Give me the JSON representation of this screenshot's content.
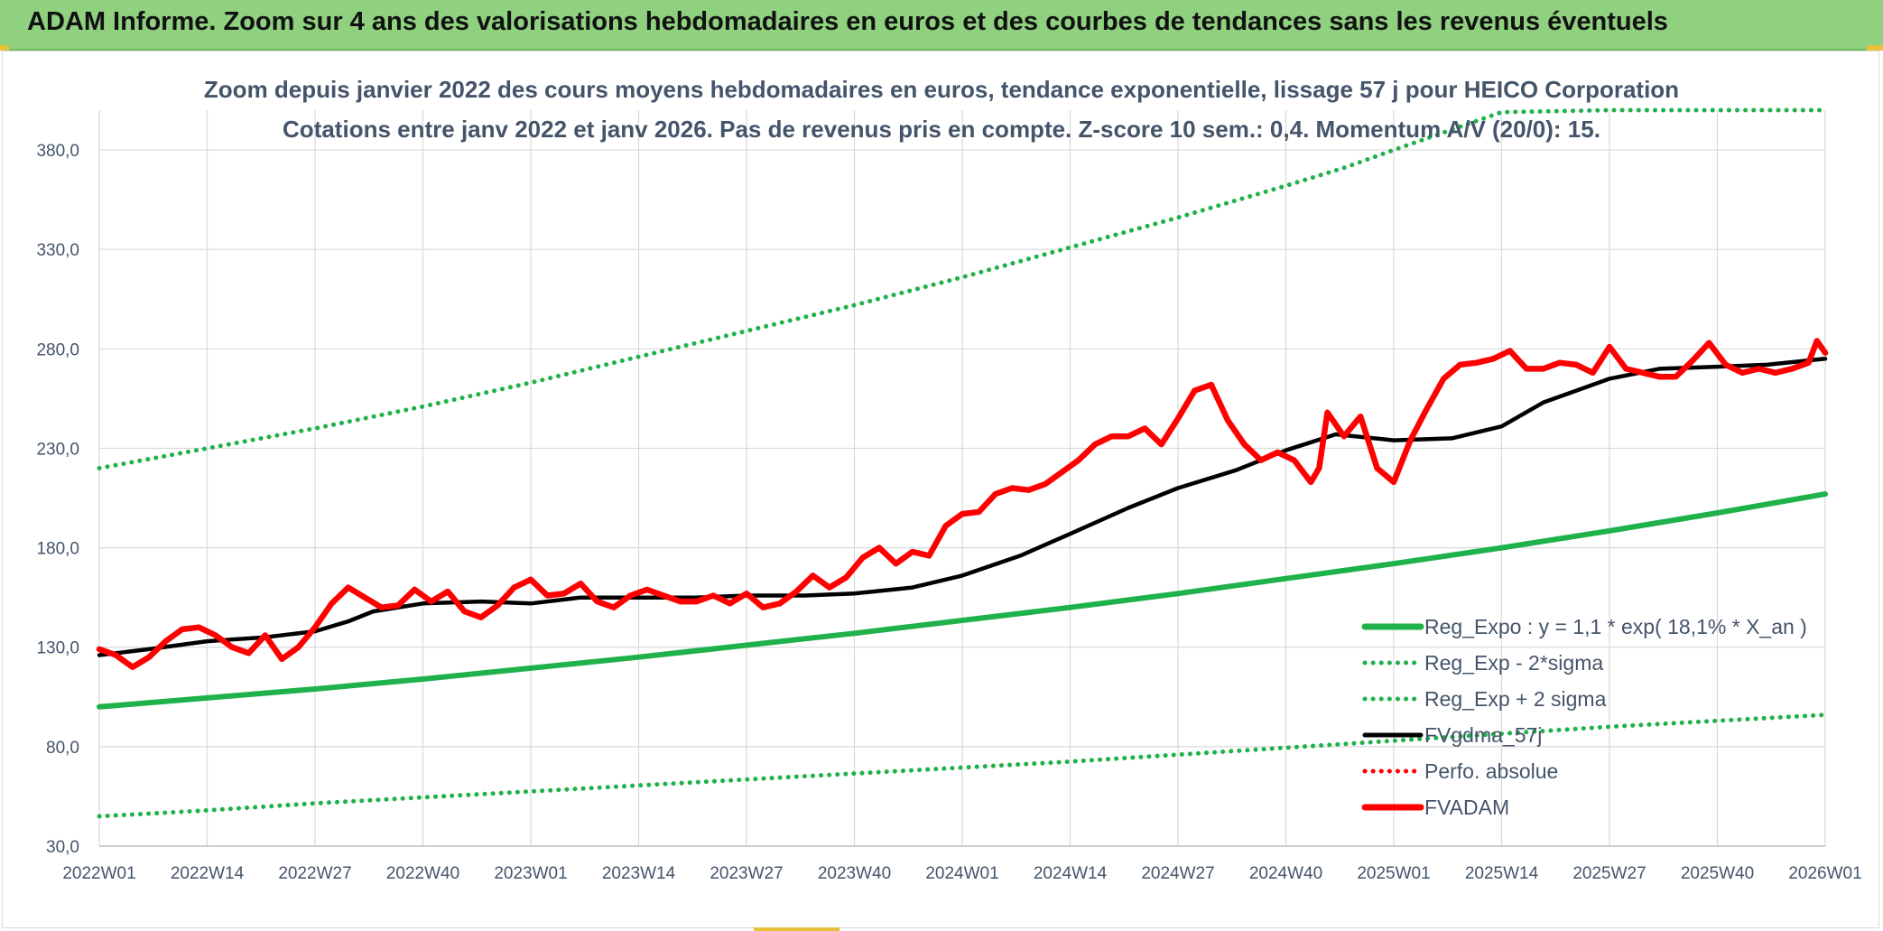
{
  "header": {
    "title": "ADAM Informe. Zoom sur 4 ans des valorisations hebdomadaires en euros et des courbes de tendances sans les revenus éventuels"
  },
  "colors": {
    "header_bg": "#8fd17f",
    "reg_expo": "#1fb14a",
    "sigma_bands": "#1fb14a",
    "fvgdma": "#000000",
    "perfo": "#ff0000",
    "fvadam": "#ff0000",
    "grid": "#d9d9d9",
    "text": "#44546a"
  },
  "chart_data": {
    "type": "line",
    "title_line1": "Zoom depuis janvier 2022 des cours moyens hebdomadaires en euros, tendance exponentielle, lissage 57 j pour HEICO Corporation",
    "title_line2": "Cotations entre janv 2022 et janv 2026. Pas de revenus pris en compte. Z-score 10 sem.: 0,4. Momentum A/V (20/0): 15.",
    "xlabel": "",
    "ylabel": "",
    "ylim": [
      30,
      400
    ],
    "xlim": [
      0,
      208
    ],
    "y_ticks": [
      30,
      80,
      130,
      180,
      230,
      280,
      330,
      380
    ],
    "y_tick_labels": [
      "30,0",
      "80,0",
      "130,0",
      "180,0",
      "230,0",
      "280,0",
      "330,0",
      "380,0"
    ],
    "x_ticks": [
      0,
      13,
      26,
      39,
      52,
      65,
      78,
      91,
      104,
      117,
      130,
      143,
      156,
      169,
      182,
      195,
      208
    ],
    "x_tick_labels": [
      "2022W01",
      "2022W14",
      "2022W27",
      "2022W40",
      "2023W01",
      "2023W14",
      "2023W27",
      "2023W40",
      "2024W01",
      "2024W14",
      "2024W27",
      "2024W40",
      "2025W01",
      "2025W14",
      "2025W27",
      "2025W40",
      "2026W01"
    ],
    "grid": true,
    "legend_position": "bottom-right",
    "legend": [
      {
        "key": "reg_expo",
        "label": "Reg_Expo : y = 1,1 * exp( 18,1% *  X_an )",
        "style": "solid-thick",
        "color": "#1fb14a"
      },
      {
        "key": "reg_minus",
        "label": "Reg_Exp - 2*sigma",
        "style": "dotted",
        "color": "#1fb14a"
      },
      {
        "key": "reg_plus",
        "label": "Reg_Exp + 2 sigma",
        "style": "dotted",
        "color": "#1fb14a"
      },
      {
        "key": "fvgdma",
        "label": "FVgdma_57j",
        "style": "solid",
        "color": "#000000"
      },
      {
        "key": "perfo",
        "label": "Perfo. absolue",
        "style": "dotted",
        "color": "#ff0000"
      },
      {
        "key": "fvadam",
        "label": "FVADAM",
        "style": "solid-thick",
        "color": "#ff0000"
      }
    ],
    "series": [
      {
        "name": "Reg_Expo",
        "color": "#1fb14a",
        "x": [
          0,
          13,
          26,
          39,
          52,
          65,
          78,
          91,
          104,
          117,
          130,
          143,
          156,
          169,
          182,
          195,
          208
        ],
        "values": [
          100,
          104.5,
          109,
          114,
          119.5,
          125,
          131,
          137,
          143.5,
          150,
          157,
          164.5,
          172,
          180,
          188.5,
          197.5,
          207
        ]
      },
      {
        "name": "Reg_Exp - 2*sigma",
        "color": "#1fb14a",
        "x": [
          0,
          13,
          26,
          39,
          52,
          65,
          78,
          91,
          104,
          117,
          130,
          143,
          156,
          169,
          182,
          195,
          208
        ],
        "values": [
          45,
          48,
          51.5,
          54.5,
          57.5,
          60.5,
          63.5,
          66.5,
          69.5,
          72.5,
          76,
          79.5,
          83,
          86.5,
          90,
          93,
          96
        ]
      },
      {
        "name": "Reg_Exp + 2 sigma",
        "color": "#1fb14a",
        "x": [
          0,
          13,
          26,
          39,
          52,
          65,
          78,
          91,
          104,
          117,
          130,
          143,
          150,
          156,
          169,
          182,
          195,
          208
        ],
        "values": [
          220,
          230,
          240,
          251,
          263,
          276,
          289,
          302,
          316,
          331,
          346,
          362,
          371,
          380,
          399,
          400,
          400,
          400
        ]
      },
      {
        "name": "FVgdma_57j",
        "color": "#000000",
        "x": [
          0,
          6,
          13,
          20,
          26,
          30,
          33,
          39,
          46,
          52,
          58,
          65,
          72,
          78,
          85,
          91,
          98,
          104,
          111,
          117,
          124,
          130,
          137,
          143,
          149,
          156,
          163,
          169,
          174,
          182,
          188,
          195,
          201,
          208
        ],
        "values": [
          126,
          129,
          133,
          135,
          138,
          143,
          148,
          152,
          153,
          152,
          155,
          155,
          155,
          156,
          156,
          157,
          160,
          166,
          176,
          187,
          200,
          210,
          219,
          229,
          237,
          234,
          235,
          241,
          253,
          265,
          270,
          271,
          272,
          275
        ]
      },
      {
        "name": "FVADAM",
        "color": "#ff0000",
        "x": [
          0,
          2,
          4,
          6,
          8,
          10,
          12,
          14,
          16,
          18,
          20,
          22,
          24,
          26,
          28,
          30,
          32,
          34,
          36,
          38,
          40,
          42,
          44,
          46,
          48,
          50,
          52,
          54,
          56,
          58,
          60,
          62,
          64,
          66,
          68,
          70,
          72,
          74,
          76,
          78,
          80,
          82,
          84,
          86,
          88,
          90,
          92,
          94,
          96,
          98,
          100,
          102,
          104,
          106,
          108,
          110,
          112,
          114,
          116,
          118,
          120,
          122,
          124,
          126,
          128,
          130,
          132,
          134,
          136,
          138,
          140,
          142,
          144,
          146,
          147,
          148,
          150,
          152,
          154,
          156,
          158,
          160,
          162,
          164,
          166,
          168,
          170,
          172,
          174,
          176,
          178,
          180,
          182,
          184,
          186,
          188,
          190,
          192,
          194,
          196,
          198,
          200,
          202,
          204,
          206,
          207,
          208
        ],
        "values": [
          129,
          126,
          120,
          125,
          133,
          139,
          140,
          136,
          130,
          127,
          136,
          124,
          130,
          140,
          152,
          160,
          155,
          150,
          151,
          159,
          153,
          158,
          148,
          145,
          151,
          160,
          164,
          156,
          157,
          162,
          153,
          150,
          156,
          159,
          156,
          153,
          153,
          156,
          152,
          157,
          150,
          152,
          158,
          166,
          160,
          165,
          175,
          180,
          172,
          178,
          176,
          191,
          197,
          198,
          207,
          210,
          209,
          212,
          218,
          224,
          232,
          236,
          236,
          240,
          232,
          245,
          259,
          262,
          244,
          232,
          224,
          228,
          224,
          213,
          220,
          248,
          236,
          246,
          220,
          213,
          234,
          250,
          265,
          272,
          273,
          275,
          279,
          270,
          270,
          273,
          272,
          268,
          281,
          270,
          268,
          266,
          266,
          274,
          283,
          272,
          268,
          270,
          268,
          270,
          273,
          284,
          278
        ]
      }
    ]
  }
}
